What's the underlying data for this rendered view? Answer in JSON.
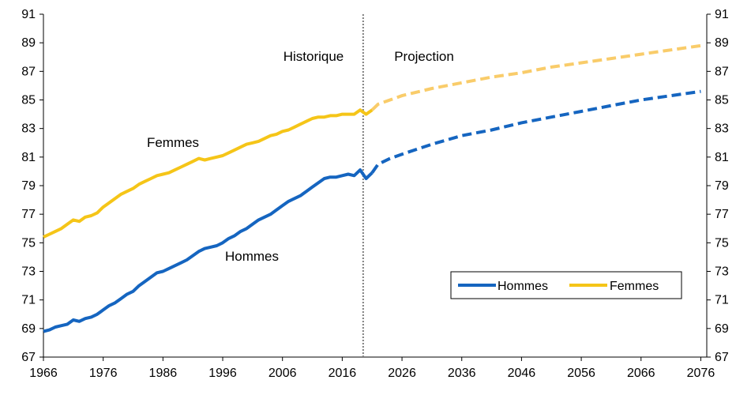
{
  "chart_data": {
    "type": "line",
    "x_ticks": [
      "1966",
      "1976",
      "1986",
      "1996",
      "2006",
      "2016",
      "2026",
      "2036",
      "2046",
      "2056",
      "2066",
      "2076"
    ],
    "y_ticks": [
      "67",
      "69",
      "71",
      "73",
      "75",
      "77",
      "79",
      "81",
      "83",
      "85",
      "87",
      "89",
      "91"
    ],
    "xlim": [
      1966,
      2077
    ],
    "ylim": [
      67,
      91
    ],
    "grid": false,
    "legend_position": "bottom-right",
    "divider_year": 2019.5,
    "annotations": {
      "historique": "Historique",
      "projection": "Projection",
      "femmes_label": "Femmes",
      "hommes_label": "Hommes"
    },
    "legend": {
      "hommes": "Hommes",
      "femmes": "Femmes"
    },
    "colors": {
      "hommes": "#1565C0",
      "femmes": "#F5C518",
      "hommes_projection": "#1565C0",
      "femmes_projection": "#F9CC6A",
      "divider": "#7F7F7F"
    },
    "series": [
      {
        "name": "Hommes",
        "historical": [
          [
            1966,
            68.8
          ],
          [
            1967,
            68.9
          ],
          [
            1968,
            69.1
          ],
          [
            1969,
            69.2
          ],
          [
            1970,
            69.3
          ],
          [
            1971,
            69.6
          ],
          [
            1972,
            69.5
          ],
          [
            1973,
            69.7
          ],
          [
            1974,
            69.8
          ],
          [
            1975,
            70.0
          ],
          [
            1976,
            70.3
          ],
          [
            1977,
            70.6
          ],
          [
            1978,
            70.8
          ],
          [
            1979,
            71.1
          ],
          [
            1980,
            71.4
          ],
          [
            1981,
            71.6
          ],
          [
            1982,
            72.0
          ],
          [
            1983,
            72.3
          ],
          [
            1984,
            72.6
          ],
          [
            1985,
            72.9
          ],
          [
            1986,
            73.0
          ],
          [
            1987,
            73.2
          ],
          [
            1988,
            73.4
          ],
          [
            1989,
            73.6
          ],
          [
            1990,
            73.8
          ],
          [
            1991,
            74.1
          ],
          [
            1992,
            74.4
          ],
          [
            1993,
            74.6
          ],
          [
            1994,
            74.7
          ],
          [
            1995,
            74.8
          ],
          [
            1996,
            75.0
          ],
          [
            1997,
            75.3
          ],
          [
            1998,
            75.5
          ],
          [
            1999,
            75.8
          ],
          [
            2000,
            76.0
          ],
          [
            2001,
            76.3
          ],
          [
            2002,
            76.6
          ],
          [
            2003,
            76.8
          ],
          [
            2004,
            77.0
          ],
          [
            2005,
            77.3
          ],
          [
            2006,
            77.6
          ],
          [
            2007,
            77.9
          ],
          [
            2008,
            78.1
          ],
          [
            2009,
            78.3
          ],
          [
            2010,
            78.6
          ],
          [
            2011,
            78.9
          ],
          [
            2012,
            79.2
          ],
          [
            2013,
            79.5
          ],
          [
            2014,
            79.6
          ],
          [
            2015,
            79.6
          ],
          [
            2016,
            79.7
          ],
          [
            2017,
            79.8
          ],
          [
            2018,
            79.7
          ],
          [
            2019,
            80.1
          ],
          [
            2020,
            79.5
          ],
          [
            2021,
            79.9
          ]
        ],
        "projection": [
          [
            2021,
            79.9
          ],
          [
            2022,
            80.5
          ],
          [
            2024,
            80.9
          ],
          [
            2026,
            81.2
          ],
          [
            2031,
            81.9
          ],
          [
            2036,
            82.5
          ],
          [
            2041,
            82.9
          ],
          [
            2046,
            83.4
          ],
          [
            2051,
            83.8
          ],
          [
            2056,
            84.2
          ],
          [
            2061,
            84.6
          ],
          [
            2066,
            85.0
          ],
          [
            2071,
            85.3
          ],
          [
            2076,
            85.6
          ]
        ]
      },
      {
        "name": "Femmes",
        "historical": [
          [
            1966,
            75.4
          ],
          [
            1967,
            75.6
          ],
          [
            1968,
            75.8
          ],
          [
            1969,
            76.0
          ],
          [
            1970,
            76.3
          ],
          [
            1971,
            76.6
          ],
          [
            1972,
            76.5
          ],
          [
            1973,
            76.8
          ],
          [
            1974,
            76.9
          ],
          [
            1975,
            77.1
          ],
          [
            1976,
            77.5
          ],
          [
            1977,
            77.8
          ],
          [
            1978,
            78.1
          ],
          [
            1979,
            78.4
          ],
          [
            1980,
            78.6
          ],
          [
            1981,
            78.8
          ],
          [
            1982,
            79.1
          ],
          [
            1983,
            79.3
          ],
          [
            1984,
            79.5
          ],
          [
            1985,
            79.7
          ],
          [
            1986,
            79.8
          ],
          [
            1987,
            79.9
          ],
          [
            1988,
            80.1
          ],
          [
            1989,
            80.3
          ],
          [
            1990,
            80.5
          ],
          [
            1991,
            80.7
          ],
          [
            1992,
            80.9
          ],
          [
            1993,
            80.8
          ],
          [
            1994,
            80.9
          ],
          [
            1995,
            81.0
          ],
          [
            1996,
            81.1
          ],
          [
            1997,
            81.3
          ],
          [
            1998,
            81.5
          ],
          [
            1999,
            81.7
          ],
          [
            2000,
            81.9
          ],
          [
            2001,
            82.0
          ],
          [
            2002,
            82.1
          ],
          [
            2003,
            82.3
          ],
          [
            2004,
            82.5
          ],
          [
            2005,
            82.6
          ],
          [
            2006,
            82.8
          ],
          [
            2007,
            82.9
          ],
          [
            2008,
            83.1
          ],
          [
            2009,
            83.3
          ],
          [
            2010,
            83.5
          ],
          [
            2011,
            83.7
          ],
          [
            2012,
            83.8
          ],
          [
            2013,
            83.8
          ],
          [
            2014,
            83.9
          ],
          [
            2015,
            83.9
          ],
          [
            2016,
            84.0
          ],
          [
            2017,
            84.0
          ],
          [
            2018,
            84.0
          ],
          [
            2019,
            84.3
          ],
          [
            2020,
            84.0
          ],
          [
            2021,
            84.3
          ]
        ],
        "projection": [
          [
            2021,
            84.3
          ],
          [
            2022,
            84.7
          ],
          [
            2024,
            85.0
          ],
          [
            2026,
            85.3
          ],
          [
            2031,
            85.8
          ],
          [
            2036,
            86.2
          ],
          [
            2041,
            86.6
          ],
          [
            2046,
            86.9
          ],
          [
            2051,
            87.3
          ],
          [
            2056,
            87.6
          ],
          [
            2061,
            87.9
          ],
          [
            2066,
            88.2
          ],
          [
            2071,
            88.5
          ],
          [
            2076,
            88.8
          ]
        ]
      }
    ]
  }
}
